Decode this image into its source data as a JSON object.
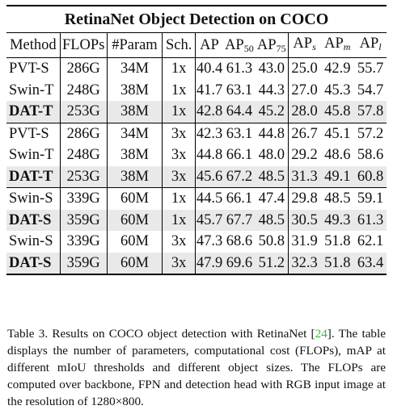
{
  "table": {
    "title": "RetinaNet Object Detection on COCO",
    "headers": {
      "method": "Method",
      "flops": "FLOPs",
      "params": "#Param",
      "sch": "Sch.",
      "ap": "AP",
      "ap50_base": "AP",
      "ap50_sub": "50",
      "ap75_base": "AP",
      "ap75_sub": "75",
      "aps_base": "AP",
      "aps_sub": "s",
      "apm_base": "AP",
      "apm_sub": "m",
      "apl_base": "AP",
      "apl_sub": "l"
    },
    "rows": [
      {
        "method": "PVT-S",
        "flops": "286G",
        "params": "34M",
        "sch": "1x",
        "ap": "40.4",
        "ap50": "61.3",
        "ap75": "43.0",
        "aps": "25.0",
        "apm": "42.9",
        "apl": "55.7"
      },
      {
        "method": "Swin-T",
        "flops": "248G",
        "params": "38M",
        "sch": "1x",
        "ap": "41.7",
        "ap50": "63.1",
        "ap75": "44.3",
        "aps": "27.0",
        "apm": "45.3",
        "apl": "54.7"
      },
      {
        "method": "DAT-T",
        "flops": "253G",
        "params": "38M",
        "sch": "1x",
        "ap": "42.8",
        "ap50": "64.4",
        "ap75": "45.2",
        "aps": "28.0",
        "apm": "45.8",
        "apl": "57.8"
      },
      {
        "method": "PVT-S",
        "flops": "286G",
        "params": "34M",
        "sch": "3x",
        "ap": "42.3",
        "ap50": "63.1",
        "ap75": "44.8",
        "aps": "26.7",
        "apm": "45.1",
        "apl": "57.2"
      },
      {
        "method": "Swin-T",
        "flops": "248G",
        "params": "38M",
        "sch": "3x",
        "ap": "44.8",
        "ap50": "66.1",
        "ap75": "48.0",
        "aps": "29.2",
        "apm": "48.6",
        "apl": "58.6"
      },
      {
        "method": "DAT-T",
        "flops": "253G",
        "params": "38M",
        "sch": "3x",
        "ap": "45.6",
        "ap50": "67.2",
        "ap75": "48.5",
        "aps": "31.3",
        "apm": "49.1",
        "apl": "60.8"
      },
      {
        "method": "Swin-S",
        "flops": "339G",
        "params": "60M",
        "sch": "1x",
        "ap": "44.5",
        "ap50": "66.1",
        "ap75": "47.4",
        "aps": "29.8",
        "apm": "48.5",
        "apl": "59.1"
      },
      {
        "method": "DAT-S",
        "flops": "359G",
        "params": "60M",
        "sch": "1x",
        "ap": "45.7",
        "ap50": "67.7",
        "ap75": "48.5",
        "aps": "30.5",
        "apm": "49.3",
        "apl": "61.3"
      },
      {
        "method": "Swin-S",
        "flops": "339G",
        "params": "60M",
        "sch": "3x",
        "ap": "47.3",
        "ap50": "68.6",
        "ap75": "50.8",
        "aps": "31.9",
        "apm": "51.8",
        "apl": "62.1"
      },
      {
        "method": "DAT-S",
        "flops": "359G",
        "params": "60M",
        "sch": "3x",
        "ap": "47.9",
        "ap50": "69.6",
        "ap75": "51.2",
        "aps": "32.3",
        "apm": "51.8",
        "apl": "63.4"
      }
    ]
  },
  "caption": {
    "lead": "Table 3. Results on COCO object detection with RetinaNet [",
    "ref": "24",
    "rest": "]. The table displays the number of parameters, computational cost (FLOPs), mAP at different mIoU thresholds and different object sizes. The FLOPs are computed over backbone, FPN and detection head with RGB input image at the resolution of 1280×800."
  }
}
